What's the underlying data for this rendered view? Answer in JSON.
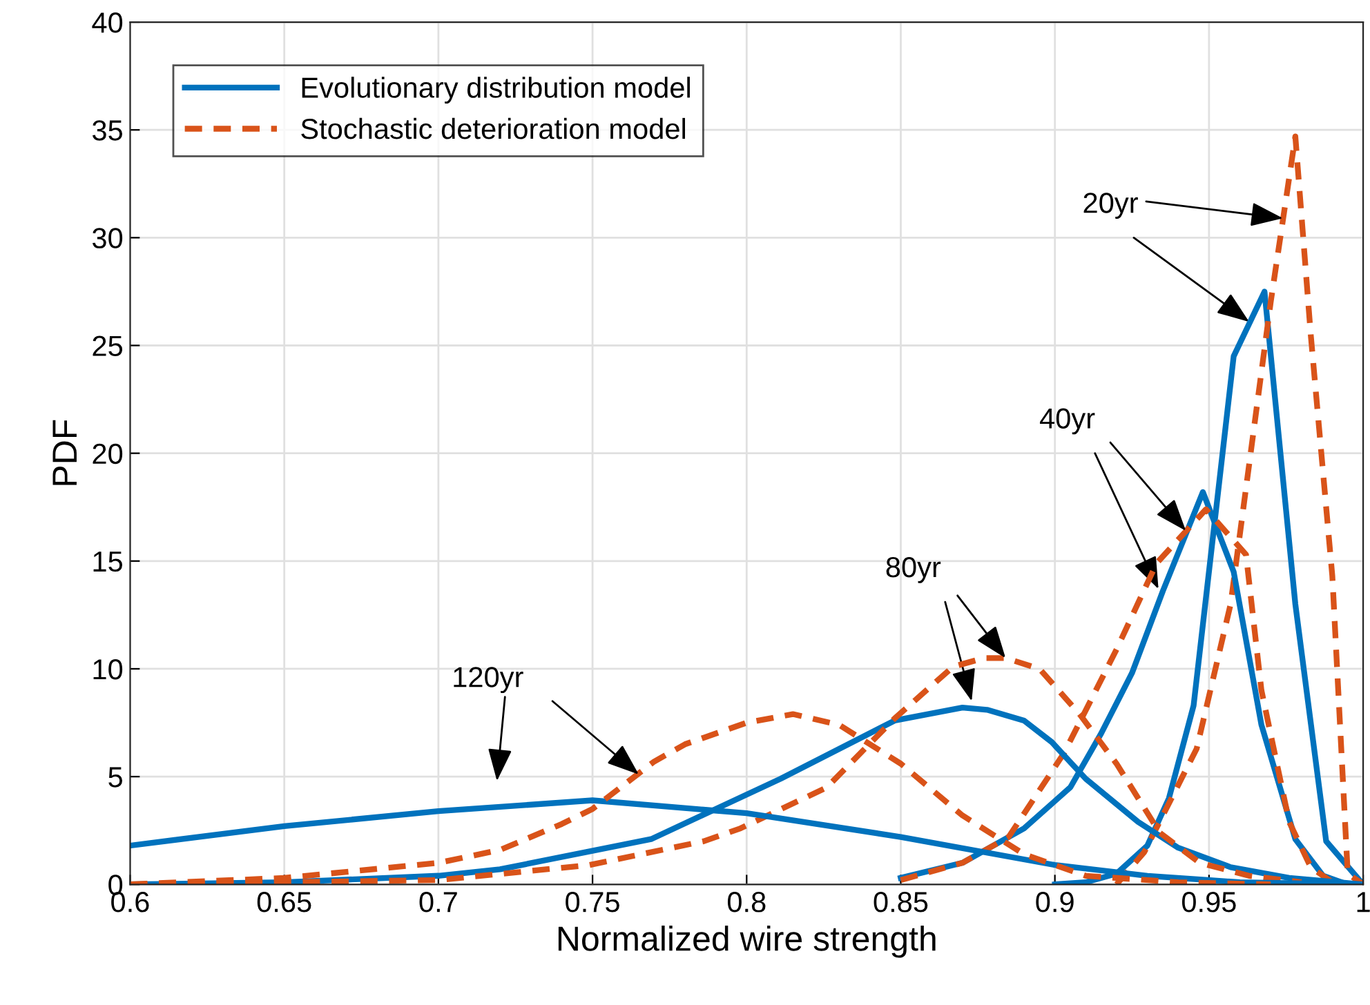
{
  "chart_data": {
    "type": "line",
    "xlabel": "Normalized wire strength",
    "ylabel": "PDF",
    "xlim": [
      0.6,
      1
    ],
    "ylim": [
      0,
      40
    ],
    "xticks": [
      0.6,
      0.65,
      0.7,
      0.75,
      0.8,
      0.85,
      0.9,
      0.95,
      1
    ],
    "yticks": [
      0,
      5,
      10,
      15,
      20,
      25,
      30,
      35,
      40
    ],
    "grid": true,
    "legend": "top left",
    "marker": "none",
    "series": [
      {
        "name": "Evolutionary distribution model",
        "color": "#0072bd",
        "line_style": "solid",
        "x": [
          0.9,
          0.91,
          0.92,
          0.93,
          0.937,
          0.945,
          0.958,
          0.968,
          0.978,
          0.988,
          1.0
        ],
        "values": [
          0,
          0.1,
          0.5,
          1.8,
          4,
          8.3,
          24.5,
          27.5,
          13,
          2,
          0
        ]
      },
      {
        "name": "Stochastic deterioration model",
        "color": "#d95319",
        "line_style": "dashed",
        "x": [
          0.92,
          0.929,
          0.946,
          0.957,
          0.97,
          0.978,
          0.983,
          0.99,
          0.995,
          1.0
        ],
        "values": [
          0,
          1.5,
          6.3,
          13,
          27,
          34.7,
          25.5,
          14.3,
          0.5,
          0
        ]
      },
      {
        "color": "#0072bd",
        "line_style": "solid",
        "x": [
          0.85,
          0.87,
          0.89,
          0.905,
          0.915,
          0.925,
          0.935,
          0.948,
          0.958,
          0.967,
          0.978,
          0.987,
          0.995
        ],
        "values": [
          0.3,
          1,
          2.6,
          4.5,
          7,
          9.8,
          13.6,
          18.2,
          14.5,
          7.4,
          2.1,
          0.4,
          0
        ]
      },
      {
        "color": "#d95319",
        "line_style": "dashed",
        "x": [
          0.85,
          0.87,
          0.885,
          0.903,
          0.92,
          0.933,
          0.949,
          0.962,
          0.967,
          0.976,
          0.983,
          0.99,
          0.998
        ],
        "values": [
          0.2,
          1,
          2.2,
          6.1,
          10.9,
          14.9,
          17.4,
          15.3,
          9,
          2.9,
          0.8,
          0.1,
          0
        ]
      },
      {
        "color": "#0072bd",
        "line_style": "solid",
        "x": [
          0.6,
          0.65,
          0.7,
          0.72,
          0.748,
          0.769,
          0.79,
          0.811,
          0.848,
          0.87,
          0.878,
          0.89,
          0.899,
          0.91,
          0.927,
          0.94,
          0.957,
          0.976,
          1.0
        ],
        "values": [
          0,
          0.1,
          0.4,
          0.7,
          1.5,
          2.1,
          3.5,
          4.9,
          7.6,
          8.2,
          8.1,
          7.6,
          6.6,
          4.9,
          2.9,
          1.7,
          0.8,
          0.3,
          0
        ]
      },
      {
        "color": "#d95319",
        "line_style": "dashed",
        "x": [
          0.6,
          0.7,
          0.749,
          0.786,
          0.798,
          0.826,
          0.848,
          0.867,
          0.877,
          0.884,
          0.895,
          0.908,
          0.92,
          0.934,
          0.947,
          0.963,
          0.98
        ],
        "values": [
          0,
          0.2,
          0.9,
          2,
          2.6,
          4.5,
          7.7,
          10.1,
          10.5,
          10.5,
          10,
          7.9,
          5.6,
          2.4,
          1,
          0.4,
          0.1
        ]
      },
      {
        "color": "#0072bd",
        "line_style": "solid",
        "x": [
          0.6,
          0.65,
          0.7,
          0.75,
          0.8,
          0.85,
          0.9,
          0.93,
          0.96,
          1.0
        ],
        "values": [
          1.8,
          2.7,
          3.4,
          3.9,
          3.3,
          2.2,
          0.9,
          0.4,
          0.1,
          0
        ]
      },
      {
        "color": "#d95319",
        "line_style": "dashed",
        "x": [
          0.6,
          0.65,
          0.7,
          0.72,
          0.74,
          0.75,
          0.76,
          0.77,
          0.78,
          0.8,
          0.815,
          0.83,
          0.85,
          0.87,
          0.89,
          0.91,
          0.94,
          0.97
        ],
        "values": [
          0,
          0.3,
          1.0,
          1.6,
          2.8,
          3.5,
          4.6,
          5.7,
          6.5,
          7.5,
          7.9,
          7.4,
          5.6,
          3.2,
          1.4,
          0.4,
          0.1,
          0
        ]
      }
    ],
    "annotations": [
      {
        "text": "20yr",
        "x": 0.974,
        "y": 30.9
      },
      {
        "text": "40yr",
        "x": 0.9425,
        "y": 16.4
      },
      {
        "text": "80yr",
        "x": 0.884,
        "y": 10.5
      },
      {
        "text": "120yr",
        "x": 0.765,
        "y": 5.1
      }
    ]
  }
}
